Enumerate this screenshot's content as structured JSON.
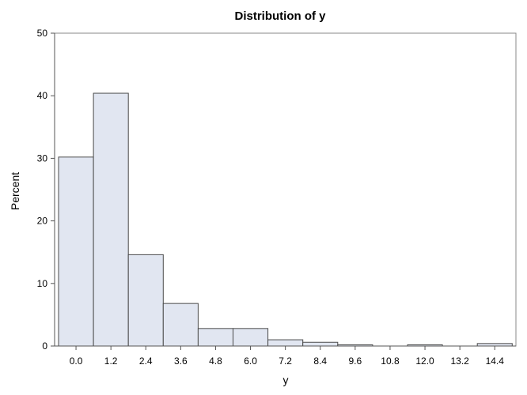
{
  "chart_data": {
    "type": "bar",
    "title": "Distribution of y",
    "xlabel": "y",
    "ylabel": "Percent",
    "categories": [
      "0.0",
      "1.2",
      "2.4",
      "3.6",
      "4.8",
      "6.0",
      "7.2",
      "8.4",
      "9.6",
      "10.8",
      "12.0",
      "13.2",
      "14.4"
    ],
    "values": [
      30.2,
      40.4,
      14.6,
      6.8,
      2.8,
      2.8,
      1.0,
      0.6,
      0.2,
      0.0,
      0.2,
      0.0,
      0.4
    ],
    "bin_width": 1.2,
    "ylim": [
      0,
      50
    ],
    "yticks": [
      "0",
      "10",
      "20",
      "30",
      "40",
      "50"
    ],
    "grid": false,
    "colors": {
      "bar_fill": "#e1e6f1",
      "bar_stroke": "#4a4a4a"
    }
  }
}
